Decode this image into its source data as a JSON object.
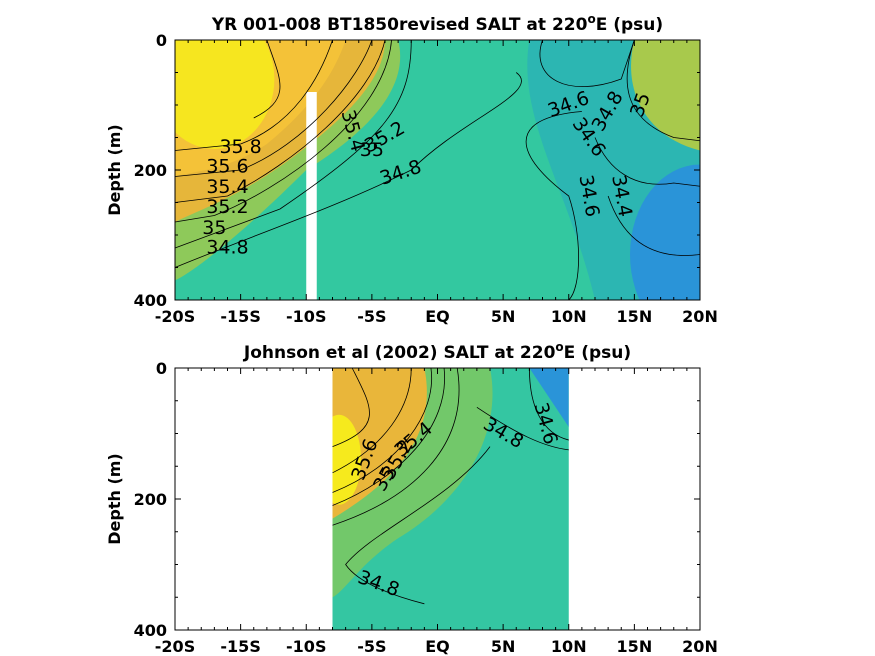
{
  "chart_data": [
    {
      "type": "heatmap",
      "title_main": "YR 001-008 BT1850revised SALT at 220",
      "title_deg": "o",
      "title_tail": "E (psu)",
      "ylabel": "Depth (m)",
      "xlabel": "",
      "x_ticks": [
        "-20S",
        "-15S",
        "-10S",
        "-5S",
        "EQ",
        "5N",
        "10N",
        "15N",
        "20N"
      ],
      "x_tick_values": [
        -20,
        -15,
        -10,
        -5,
        0,
        5,
        10,
        15,
        20
      ],
      "y_ticks": [
        "0",
        "200",
        "400"
      ],
      "y_tick_values": [
        0,
        200,
        400
      ],
      "xlim": [
        -20,
        20
      ],
      "ylim": [
        0,
        400
      ],
      "y_reversed": true,
      "data_x_range": [
        -20,
        20
      ],
      "gap_x": [
        -10,
        -9.2
      ],
      "gap_depth": [
        80,
        400
      ],
      "contour_levels": [
        34.4,
        34.6,
        34.8,
        35.0,
        35.2,
        35.4,
        35.6,
        35.8
      ],
      "contour_labels": [
        {
          "text": "35.8",
          "x": -15,
          "y": 165
        },
        {
          "text": "35.6",
          "x": -16,
          "y": 195
        },
        {
          "text": "35.4",
          "x": -16,
          "y": 227
        },
        {
          "text": "35.2",
          "x": -16,
          "y": 258
        },
        {
          "text": "35",
          "x": -17,
          "y": 290
        },
        {
          "text": "34.8",
          "x": -16,
          "y": 320
        },
        {
          "text": "35.4",
          "x": -6.5,
          "y": 140,
          "rot": 75
        },
        {
          "text": "35.2",
          "x": -4,
          "y": 150,
          "rot": -30
        },
        {
          "text": "35",
          "x": -5,
          "y": 170
        },
        {
          "text": "34.8",
          "x": -2.8,
          "y": 205,
          "rot": -18
        },
        {
          "text": "34.6",
          "x": 10,
          "y": 100,
          "rot": -20
        },
        {
          "text": "34.8",
          "x": 13,
          "y": 110,
          "rot": -60
        },
        {
          "text": "35",
          "x": 15.5,
          "y": 100,
          "rot": -70
        },
        {
          "text": "34.6",
          "x": 11.5,
          "y": 150,
          "rot": 55
        },
        {
          "text": "34.6",
          "x": 11.5,
          "y": 240,
          "rot": 80
        },
        {
          "text": "34.4",
          "x": 14,
          "y": 240,
          "rot": 80
        }
      ]
    },
    {
      "type": "heatmap",
      "title_main": "Johnson et al (2002) SALT at 220",
      "title_deg": "o",
      "title_tail": "E (psu)",
      "ylabel": "Depth (m)",
      "xlabel": "",
      "x_ticks": [
        "-20S",
        "-15S",
        "-10S",
        "-5S",
        "EQ",
        "5N",
        "10N",
        "15N",
        "20N"
      ],
      "x_tick_values": [
        -20,
        -15,
        -10,
        -5,
        0,
        5,
        10,
        15,
        20
      ],
      "y_ticks": [
        "0",
        "200",
        "400"
      ],
      "y_tick_values": [
        0,
        200,
        400
      ],
      "xlim": [
        -20,
        20
      ],
      "ylim": [
        0,
        400
      ],
      "y_reversed": true,
      "data_x_range": [
        -8,
        10
      ],
      "contour_levels": [
        34.4,
        34.6,
        34.8,
        35.0,
        35.2,
        35.4,
        35.6
      ],
      "contour_labels": [
        {
          "text": "35.4",
          "x": -1.8,
          "y": 110,
          "rot": -40
        },
        {
          "text": "35.2",
          "x": -3,
          "y": 140,
          "rot": -60
        },
        {
          "text": "35",
          "x": -4,
          "y": 170,
          "rot": -60
        },
        {
          "text": "35.6",
          "x": -5.5,
          "y": 140,
          "rot": -70
        },
        {
          "text": "34.8",
          "x": 5,
          "y": 100,
          "rot": 30
        },
        {
          "text": "34.6",
          "x": 8.2,
          "y": 85,
          "rot": 75
        },
        {
          "text": "34.8",
          "x": -4.5,
          "y": 330,
          "rot": 20
        }
      ]
    }
  ]
}
